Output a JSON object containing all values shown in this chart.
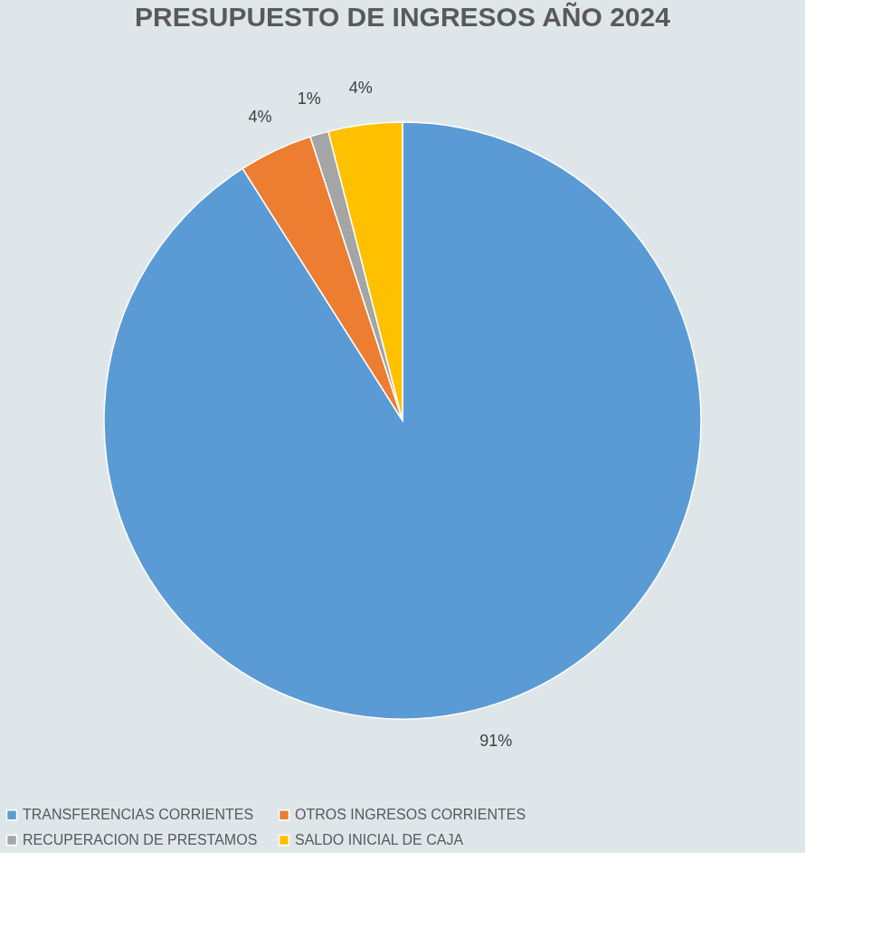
{
  "chart_data": {
    "type": "pie",
    "title": "PRESUPUESTO DE INGRESOS AÑO 2024",
    "categories": [
      "TRANSFERENCIAS CORRIENTES",
      "OTROS INGRESOS CORRIENTES",
      "RECUPERACION DE PRESTAMOS",
      "SALDO INICIAL DE CAJA"
    ],
    "values": [
      91,
      4,
      1,
      4
    ],
    "colors": [
      "#5b9bd5",
      "#ed7d31",
      "#a5a5a5",
      "#ffc000"
    ],
    "value_labels": [
      "91%",
      "4%",
      "1%",
      "4%"
    ],
    "legend": "bottom"
  }
}
